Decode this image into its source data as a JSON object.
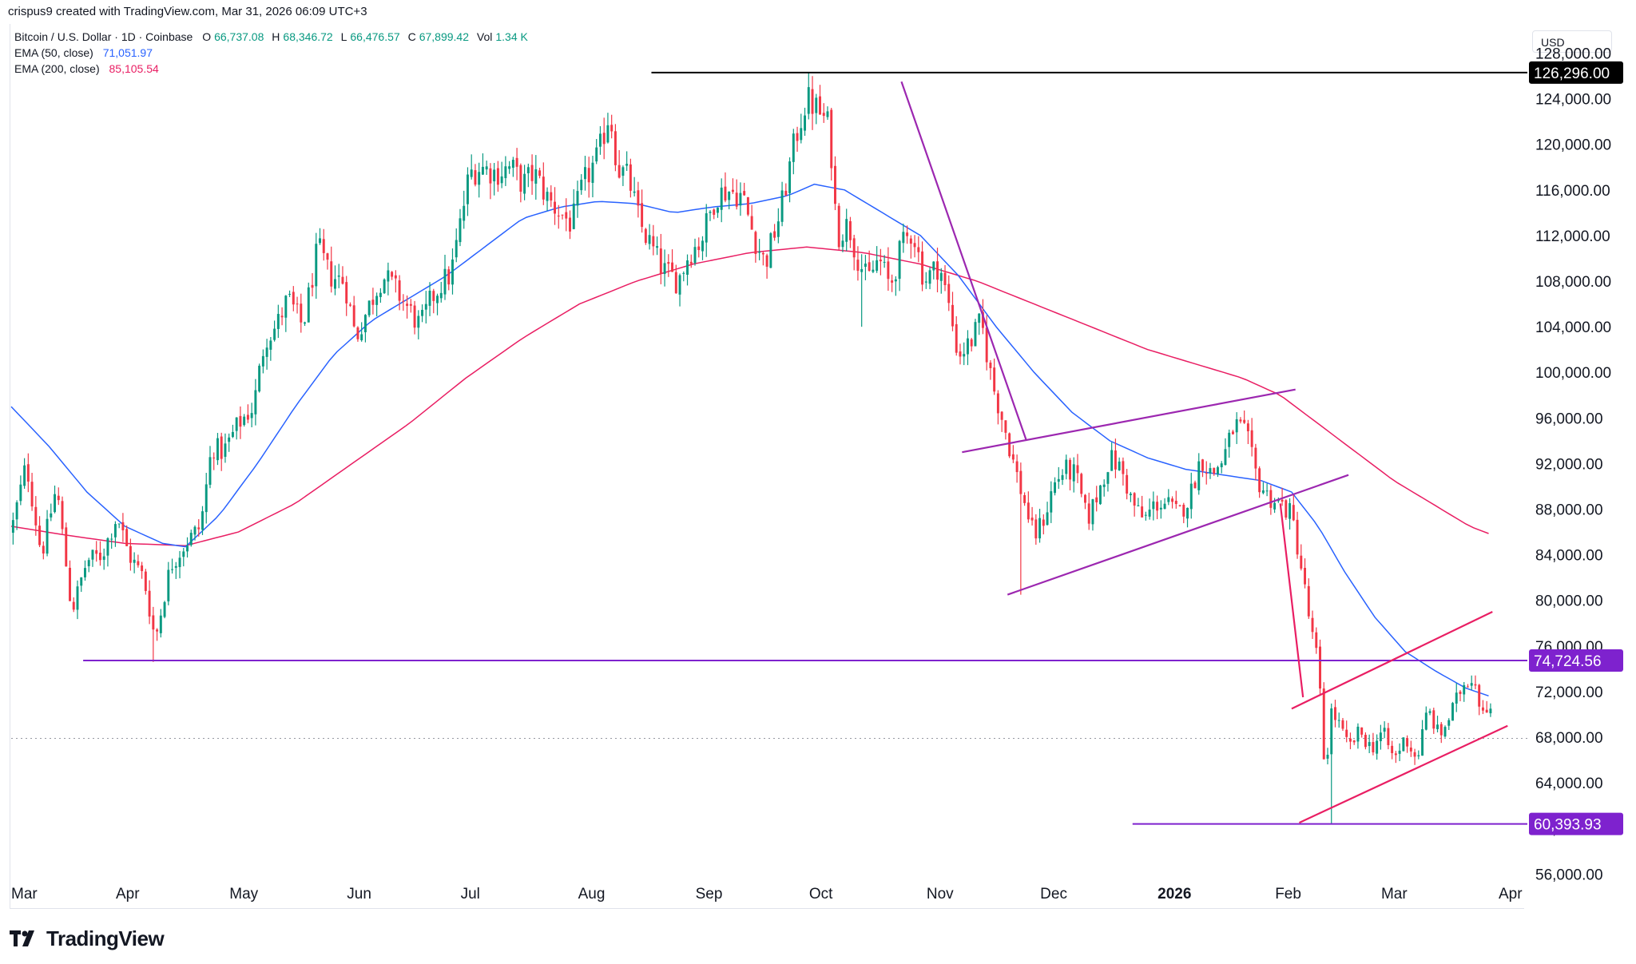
{
  "header": {
    "credit": "crispus9 created with TradingView.com, Mar 31, 2026 06:09 UTC+3"
  },
  "legend": {
    "symbol": "Bitcoin / U.S. Dollar · 1D · Coinbase",
    "open_label": "O",
    "open": "66,737.08",
    "high_label": "H",
    "high": "68,346.72",
    "low_label": "L",
    "low": "66,476.57",
    "close_label": "C",
    "close": "67,899.42",
    "vol_label": "Vol",
    "vol": "1.34 K",
    "ema50_label": "EMA (50, close)",
    "ema50_value": "71,051.97",
    "ema200_label": "EMA (200, close)",
    "ema200_value": "85,105.54"
  },
  "currency": "USD",
  "brand": {
    "name": "TradingView"
  },
  "colors": {
    "up": "#089981",
    "down": "#f23645",
    "ema50": "#2962ff",
    "ema200": "#e91e63",
    "trend_purple": "#9c27b0",
    "level_purple": "#7e22ce",
    "trend_red": "#e91e63",
    "black_line": "#000000"
  },
  "chart_data": {
    "type": "candlestick",
    "title": "Bitcoin / U.S. Dollar · 1D · Coinbase",
    "ylim": [
      53500,
      130000
    ],
    "y_ticks": [
      56000,
      60000,
      64000,
      68000,
      72000,
      76000,
      80000,
      84000,
      88000,
      92000,
      96000,
      100000,
      104000,
      108000,
      112000,
      116000,
      120000,
      124000,
      128000
    ],
    "y_tick_labels": [
      "56,000.00",
      "60,000.00",
      "64,000.00",
      "68,000.00",
      "72,000.00",
      "76,000.00",
      "80,000.00",
      "84,000.00",
      "88,000.00",
      "92,000.00",
      "96,000.00",
      "100,000.00",
      "104,000.00",
      "108,000.00",
      "112,000.00",
      "116,000.00",
      "120,000.00",
      "124,000.00",
      "128,000.00"
    ],
    "x_labels": [
      {
        "label": "Mar",
        "day": 0
      },
      {
        "label": "Apr",
        "day": 31
      },
      {
        "label": "May",
        "day": 61
      },
      {
        "label": "Jun",
        "day": 92
      },
      {
        "label": "Jul",
        "day": 122
      },
      {
        "label": "Aug",
        "day": 153
      },
      {
        "label": "Sep",
        "day": 184
      },
      {
        "label": "Oct",
        "day": 214
      },
      {
        "label": "Nov",
        "day": 245
      },
      {
        "label": "Dec",
        "day": 275
      },
      {
        "label": "2026",
        "day": 306,
        "bold": true
      },
      {
        "label": "Feb",
        "day": 337
      },
      {
        "label": "Mar",
        "day": 365
      },
      {
        "label": "Apr",
        "day": 396
      }
    ],
    "total_days": 396,
    "price_anchors": [
      [
        0,
        86000
      ],
      [
        4,
        92000
      ],
      [
        8,
        84000
      ],
      [
        12,
        90000
      ],
      [
        16,
        79000
      ],
      [
        20,
        83500
      ],
      [
        24,
        84000
      ],
      [
        28,
        87500
      ],
      [
        31,
        84000
      ],
      [
        35,
        82000
      ],
      [
        38,
        76500
      ],
      [
        42,
        83000
      ],
      [
        46,
        85000
      ],
      [
        50,
        86500
      ],
      [
        53,
        93500
      ],
      [
        56,
        93000
      ],
      [
        60,
        95500
      ],
      [
        64,
        97000
      ],
      [
        67,
        103000
      ],
      [
        70,
        104000
      ],
      [
        73,
        106500
      ],
      [
        77,
        104000
      ],
      [
        81,
        111000
      ],
      [
        84,
        108500
      ],
      [
        88,
        108000
      ],
      [
        91,
        103000
      ],
      [
        94,
        105500
      ],
      [
        98,
        108500
      ],
      [
        101,
        107500
      ],
      [
        104,
        106000
      ],
      [
        108,
        104000
      ],
      [
        111,
        106500
      ],
      [
        114,
        108000
      ],
      [
        116,
        108500
      ],
      [
        118,
        112000
      ],
      [
        121,
        117500
      ],
      [
        124,
        118000
      ],
      [
        128,
        117500
      ],
      [
        132,
        118000
      ],
      [
        135,
        116500
      ],
      [
        138,
        117500
      ],
      [
        142,
        115000
      ],
      [
        145,
        114000
      ],
      [
        148,
        113000
      ],
      [
        151,
        116500
      ],
      [
        155,
        119000
      ],
      [
        158,
        123000
      ],
      [
        160,
        118000
      ],
      [
        163,
        117000
      ],
      [
        166,
        113000
      ],
      [
        169,
        111000
      ],
      [
        172,
        109000
      ],
      [
        176,
        108000
      ],
      [
        179,
        110500
      ],
      [
        182,
        111500
      ],
      [
        186,
        115500
      ],
      [
        189,
        116000
      ],
      [
        193,
        115500
      ],
      [
        196,
        112000
      ],
      [
        199,
        109500
      ],
      [
        203,
        114000
      ],
      [
        207,
        120500
      ],
      [
        210,
        124000
      ],
      [
        213,
        123000
      ],
      [
        216,
        121500
      ],
      [
        218,
        112000
      ],
      [
        221,
        113000
      ],
      [
        223,
        110500
      ],
      [
        226,
        108000
      ],
      [
        229,
        110000
      ],
      [
        232,
        107500
      ],
      [
        235,
        111000
      ],
      [
        238,
        112500
      ],
      [
        241,
        108000
      ],
      [
        245,
        109500
      ],
      [
        248,
        105000
      ],
      [
        250,
        101500
      ],
      [
        253,
        102500
      ],
      [
        256,
        104500
      ],
      [
        259,
        99000
      ],
      [
        262,
        95500
      ],
      [
        265,
        91500
      ],
      [
        268,
        88000
      ],
      [
        270,
        85500
      ],
      [
        273,
        87500
      ],
      [
        275,
        90000
      ],
      [
        278,
        91500
      ],
      [
        281,
        91000
      ],
      [
        284,
        87000
      ],
      [
        287,
        89500
      ],
      [
        290,
        92500
      ],
      [
        293,
        91500
      ],
      [
        296,
        88500
      ],
      [
        299,
        87000
      ],
      [
        302,
        88500
      ],
      [
        305,
        88500
      ],
      [
        308,
        87500
      ],
      [
        311,
        89000
      ],
      [
        314,
        92500
      ],
      [
        317,
        91000
      ],
      [
        320,
        92500
      ],
      [
        323,
        95500
      ],
      [
        326,
        94500
      ],
      [
        329,
        90500
      ],
      [
        332,
        89000
      ],
      [
        335,
        88500
      ],
      [
        338,
        87500
      ],
      [
        341,
        82000
      ],
      [
        343,
        77500
      ],
      [
        345,
        74500
      ],
      [
        347,
        63500
      ],
      [
        348,
        70500
      ],
      [
        350,
        69500
      ],
      [
        353,
        67000
      ],
      [
        356,
        68500
      ],
      [
        359,
        67000
      ],
      [
        362,
        68500
      ],
      [
        365,
        66000
      ],
      [
        368,
        68000
      ],
      [
        371,
        66000
      ],
      [
        374,
        70500
      ],
      [
        377,
        68000
      ],
      [
        380,
        70000
      ],
      [
        383,
        72500
      ],
      [
        386,
        73500
      ],
      [
        388,
        70500
      ],
      [
        390,
        71000
      ],
      [
        392,
        68500
      ],
      [
        394,
        66500
      ],
      [
        396,
        67900
      ]
    ],
    "wick_events": [
      {
        "day": 37,
        "low": 74600
      },
      {
        "day": 348,
        "low": 60393.93
      },
      {
        "day": 210,
        "high": 126296
      },
      {
        "day": 224,
        "low": 104000
      },
      {
        "day": 266,
        "low": 80500
      }
    ],
    "ema50_anchors": [
      [
        0,
        97000
      ],
      [
        10,
        93500
      ],
      [
        20,
        89500
      ],
      [
        30,
        86500
      ],
      [
        40,
        85000
      ],
      [
        46,
        84700
      ],
      [
        55,
        87500
      ],
      [
        65,
        92000
      ],
      [
        75,
        97000
      ],
      [
        85,
        101500
      ],
      [
        95,
        104500
      ],
      [
        105,
        106500
      ],
      [
        115,
        108500
      ],
      [
        125,
        111000
      ],
      [
        135,
        113500
      ],
      [
        145,
        114500
      ],
      [
        155,
        115000
      ],
      [
        165,
        114800
      ],
      [
        175,
        114000
      ],
      [
        185,
        114500
      ],
      [
        195,
        114800
      ],
      [
        205,
        115500
      ],
      [
        212,
        116500
      ],
      [
        220,
        116000
      ],
      [
        230,
        114000
      ],
      [
        240,
        112000
      ],
      [
        250,
        108500
      ],
      [
        260,
        104000
      ],
      [
        270,
        100000
      ],
      [
        280,
        96500
      ],
      [
        290,
        94000
      ],
      [
        300,
        92500
      ],
      [
        310,
        91500
      ],
      [
        320,
        91000
      ],
      [
        330,
        90500
      ],
      [
        338,
        89500
      ],
      [
        345,
        86500
      ],
      [
        352,
        82500
      ],
      [
        360,
        78500
      ],
      [
        368,
        75500
      ],
      [
        376,
        73800
      ],
      [
        384,
        72300
      ],
      [
        392,
        71400
      ],
      [
        396,
        71052
      ]
    ],
    "ema200_anchors": [
      [
        0,
        86500
      ],
      [
        15,
        85700
      ],
      [
        30,
        85000
      ],
      [
        46,
        84800
      ],
      [
        60,
        86000
      ],
      [
        75,
        88500
      ],
      [
        90,
        92000
      ],
      [
        105,
        95500
      ],
      [
        120,
        99500
      ],
      [
        135,
        103000
      ],
      [
        150,
        106000
      ],
      [
        165,
        108000
      ],
      [
        180,
        109500
      ],
      [
        195,
        110500
      ],
      [
        210,
        111000
      ],
      [
        225,
        110500
      ],
      [
        240,
        109500
      ],
      [
        255,
        108000
      ],
      [
        270,
        106000
      ],
      [
        285,
        104000
      ],
      [
        300,
        102000
      ],
      [
        315,
        100500
      ],
      [
        325,
        99500
      ],
      [
        335,
        98000
      ],
      [
        345,
        95500
      ],
      [
        355,
        93000
      ],
      [
        365,
        90500
      ],
      [
        375,
        88500
      ],
      [
        385,
        86500
      ],
      [
        396,
        85106
      ]
    ],
    "horizontal_levels": [
      {
        "name": "all-time-high",
        "value": 126296.0,
        "label": "126,296.00",
        "from_day": 169
      },
      {
        "name": "support",
        "value": 74724.56,
        "label": "74,724.56",
        "from_day": 19
      },
      {
        "name": "low",
        "value": 60393.93,
        "label": "60,393.93",
        "from_day": 296
      }
    ],
    "last_price": 67899.42,
    "trendlines": [
      {
        "name": "descending-trendline",
        "color": "purple",
        "from": [
          235,
          125500
        ],
        "to": [
          268,
          94000
        ]
      },
      {
        "name": "upper-channel-1",
        "color": "purple",
        "from": [
          251,
          93000
        ],
        "to": [
          339,
          98500
        ]
      },
      {
        "name": "lower-channel-1",
        "color": "purple",
        "from": [
          263,
          80500
        ],
        "to": [
          353,
          91000
        ]
      },
      {
        "name": "drop-line",
        "color": "red",
        "from": [
          335,
          88500
        ],
        "to": [
          341,
          71500
        ]
      },
      {
        "name": "upper-channel-2",
        "color": "red",
        "from": [
          338,
          70500
        ],
        "to": [
          391,
          79000
        ]
      },
      {
        "name": "lower-channel-2",
        "color": "red",
        "from": [
          340,
          60500
        ],
        "to": [
          395,
          69000
        ]
      }
    ]
  }
}
